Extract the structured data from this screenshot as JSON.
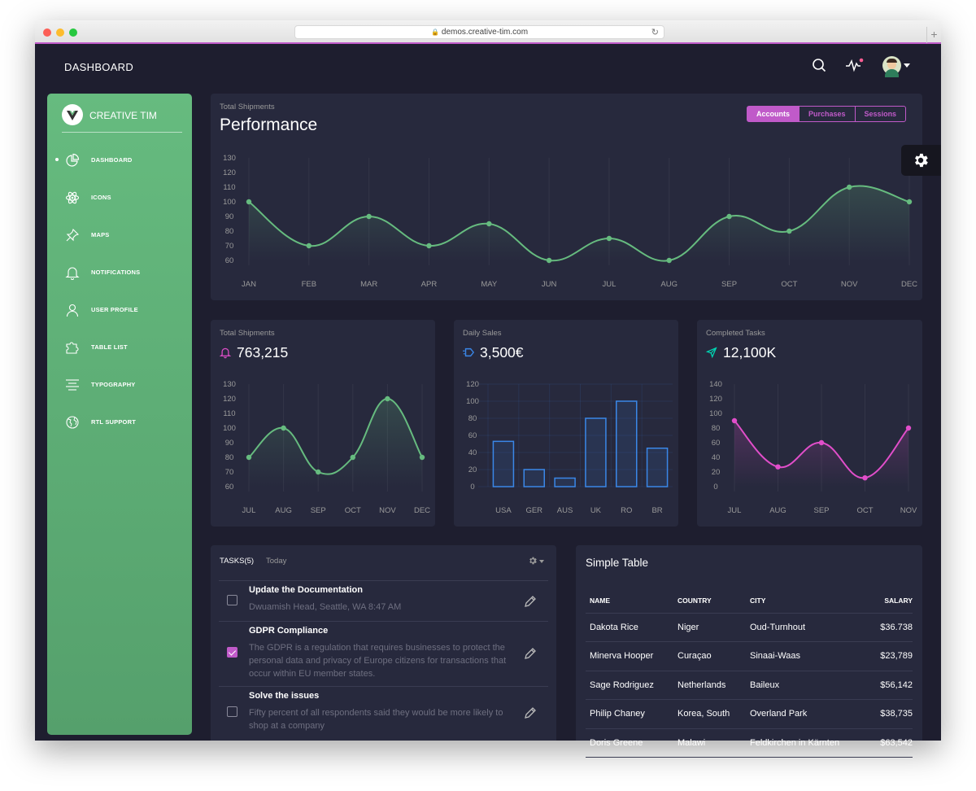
{
  "browser": {
    "url": "demos.creative-tim.com",
    "new_tab": "+"
  },
  "colors": {
    "accent": "#c05ac9",
    "green": "#66bb7f",
    "blue": "#3a87e8",
    "pink": "#e14eca",
    "bg": "#1e1e2f",
    "card": "#27293d"
  },
  "topnav": {
    "brand": "DASHBOARD",
    "icons": [
      "search-icon",
      "activity-icon",
      "avatar",
      "chevron-down-icon"
    ]
  },
  "sidebar": {
    "logo": "CREATIVE TIM",
    "items": [
      {
        "label": "DASHBOARD",
        "icon": "chart-pie-icon",
        "active": true
      },
      {
        "label": "ICONS",
        "icon": "atom-icon"
      },
      {
        "label": "MAPS",
        "icon": "pin-icon"
      },
      {
        "label": "NOTIFICATIONS",
        "icon": "bell-icon"
      },
      {
        "label": "USER PROFILE",
        "icon": "user-icon"
      },
      {
        "label": "TABLE LIST",
        "icon": "puzzle-icon"
      },
      {
        "label": "TYPOGRAPHY",
        "icon": "align-center-icon"
      },
      {
        "label": "RTL SUPPORT",
        "icon": "world-icon"
      }
    ]
  },
  "performance": {
    "category": "Total Shipments",
    "title": "Performance",
    "tabs": [
      "Accounts",
      "Purchases",
      "Sessions"
    ],
    "active_tab": "Accounts"
  },
  "card_shipments": {
    "category": "Total Shipments",
    "value": "763,215"
  },
  "card_sales": {
    "category": "Daily Sales",
    "value": "3,500€"
  },
  "card_tasks": {
    "category": "Completed Tasks",
    "value": "12,100K"
  },
  "tasks": {
    "header": "TASKS(5)",
    "tab": "Today",
    "items": [
      {
        "title": "Update the Documentation",
        "desc": "Dwuamish Head, Seattle, WA 8:47 AM",
        "checked": false
      },
      {
        "title": "GDPR Compliance",
        "desc": "The GDPR is a regulation that requires businesses to protect the personal data and privacy of Europe citizens for transactions that occur within EU member states.",
        "checked": true
      },
      {
        "title": "Solve the issues",
        "desc": "Fifty percent of all respondents said they would be more likely to shop at a company",
        "checked": false
      }
    ]
  },
  "simple_table": {
    "title": "Simple Table",
    "headers": [
      "NAME",
      "COUNTRY",
      "CITY",
      "SALARY"
    ],
    "rows": [
      [
        "Dakota Rice",
        "Niger",
        "Oud-Turnhout",
        "$36.738"
      ],
      [
        "Minerva Hooper",
        "Curaçao",
        "Sinaai-Waas",
        "$23,789"
      ],
      [
        "Sage Rodriguez",
        "Netherlands",
        "Baileux",
        "$56,142"
      ],
      [
        "Philip Chaney",
        "Korea, South",
        "Overland Park",
        "$38,735"
      ],
      [
        "Doris Greene",
        "Malawi",
        "Feldkirchen in Kärnten",
        "$63,542"
      ]
    ]
  },
  "chart_data": [
    {
      "type": "line",
      "title": "Performance",
      "categories": [
        "JAN",
        "FEB",
        "MAR",
        "APR",
        "MAY",
        "JUN",
        "JUL",
        "AUG",
        "SEP",
        "OCT",
        "NOV",
        "DEC"
      ],
      "values": [
        100,
        70,
        90,
        70,
        85,
        60,
        75,
        60,
        90,
        80,
        110,
        100
      ],
      "ylim": [
        60,
        130
      ],
      "yticks": [
        60,
        70,
        80,
        90,
        100,
        110,
        120,
        130
      ],
      "color": "#66bb7f"
    },
    {
      "type": "line",
      "title": "763,215",
      "categories": [
        "JUL",
        "AUG",
        "SEP",
        "OCT",
        "NOV",
        "DEC"
      ],
      "values": [
        80,
        100,
        70,
        80,
        120,
        80
      ],
      "ylim": [
        60,
        130
      ],
      "yticks": [
        60,
        70,
        80,
        90,
        100,
        110,
        120,
        130
      ],
      "color": "#66bb7f"
    },
    {
      "type": "bar",
      "title": "3,500€",
      "categories": [
        "USA",
        "GER",
        "AUS",
        "UK",
        "RO",
        "BR"
      ],
      "values": [
        53,
        20,
        10,
        80,
        100,
        45
      ],
      "ylim": [
        0,
        120
      ],
      "yticks": [
        0,
        20,
        40,
        60,
        80,
        100,
        120
      ],
      "color": "#3a87e8"
    },
    {
      "type": "line",
      "title": "12,100K",
      "categories": [
        "JUL",
        "AUG",
        "SEP",
        "OCT",
        "NOV"
      ],
      "values": [
        90,
        27,
        60,
        12,
        80
      ],
      "ylim": [
        0,
        140
      ],
      "yticks": [
        0,
        20,
        40,
        60,
        80,
        100,
        120,
        140
      ],
      "color": "#e14eca"
    }
  ]
}
